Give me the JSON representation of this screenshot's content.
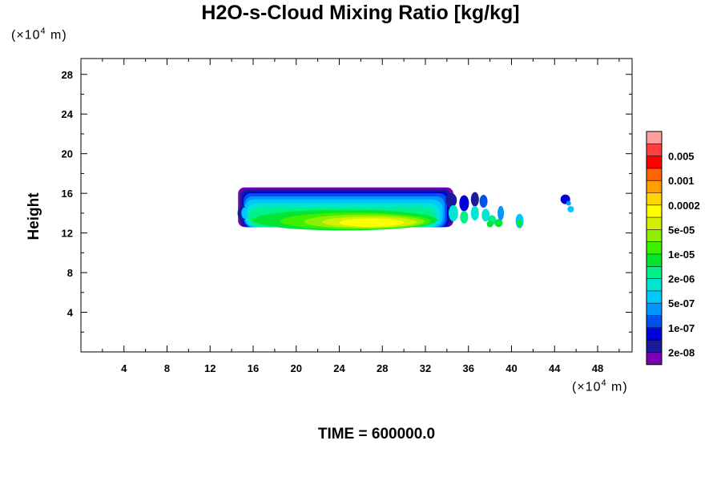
{
  "title": "H2O-s-Cloud Mixing Ratio [kg/kg]",
  "chart_data": {
    "type": "contour",
    "ylabel": "Height",
    "x_unit_prefix": "(×10",
    "x_unit_exp": "4",
    "x_unit_suffix": " m)",
    "y_unit_prefix": "(×10",
    "y_unit_exp": "4",
    "y_unit_suffix": " m)",
    "xlim": [
      0,
      51.2
    ],
    "ylim": [
      0,
      29.6
    ],
    "x_ticks": [
      4,
      8,
      12,
      16,
      20,
      24,
      28,
      32,
      36,
      40,
      44,
      48
    ],
    "y_ticks": [
      4,
      8,
      12,
      16,
      20,
      24,
      28
    ],
    "colorbar": {
      "levels": [
        "1e-08",
        "2e-08",
        "5e-08",
        "1e-07",
        "2e-07",
        "5e-07",
        "1e-06",
        "2e-06",
        "5e-06",
        "1e-05",
        "2e-05",
        "5e-05",
        "0.0001",
        "0.0002",
        "0.0005",
        "0.001",
        "0.002",
        "0.005",
        "0.01"
      ],
      "labels": [
        "2e-08",
        "1e-07",
        "5e-07",
        "2e-06",
        "1e-05",
        "5e-05",
        "0.0002",
        "0.001",
        "0.005"
      ],
      "colors": [
        "#7a00b4",
        "#1a1a9a",
        "#0000d8",
        "#0050f0",
        "#0096ff",
        "#00c8ff",
        "#00e6d2",
        "#00f08c",
        "#00e632",
        "#3cf000",
        "#8cf000",
        "#d2f000",
        "#ffff00",
        "#ffd700",
        "#ffa000",
        "#ff6400",
        "#ff0000",
        "#ff4040",
        "#ffa0a0"
      ]
    },
    "cloud_regions": [
      {
        "x_range": [
          14.6,
          34.6
        ],
        "y_range": [
          12.6,
          16.6
        ],
        "peak": "0.0002",
        "peak_x": 27,
        "peak_y": 13.1
      },
      {
        "x_range": [
          34.0,
          39.2
        ],
        "y_range": [
          12.7,
          15.9
        ],
        "peak": "5e-05"
      },
      {
        "x_range": [
          40.5,
          41.0
        ],
        "y_range": [
          12.6,
          13.9
        ],
        "peak": "5e-05"
      },
      {
        "x_range": [
          44.6,
          45.6
        ],
        "y_range": [
          14.1,
          15.8
        ],
        "peak": "5e-07"
      }
    ]
  },
  "time_label": "TIME = 600000.0"
}
